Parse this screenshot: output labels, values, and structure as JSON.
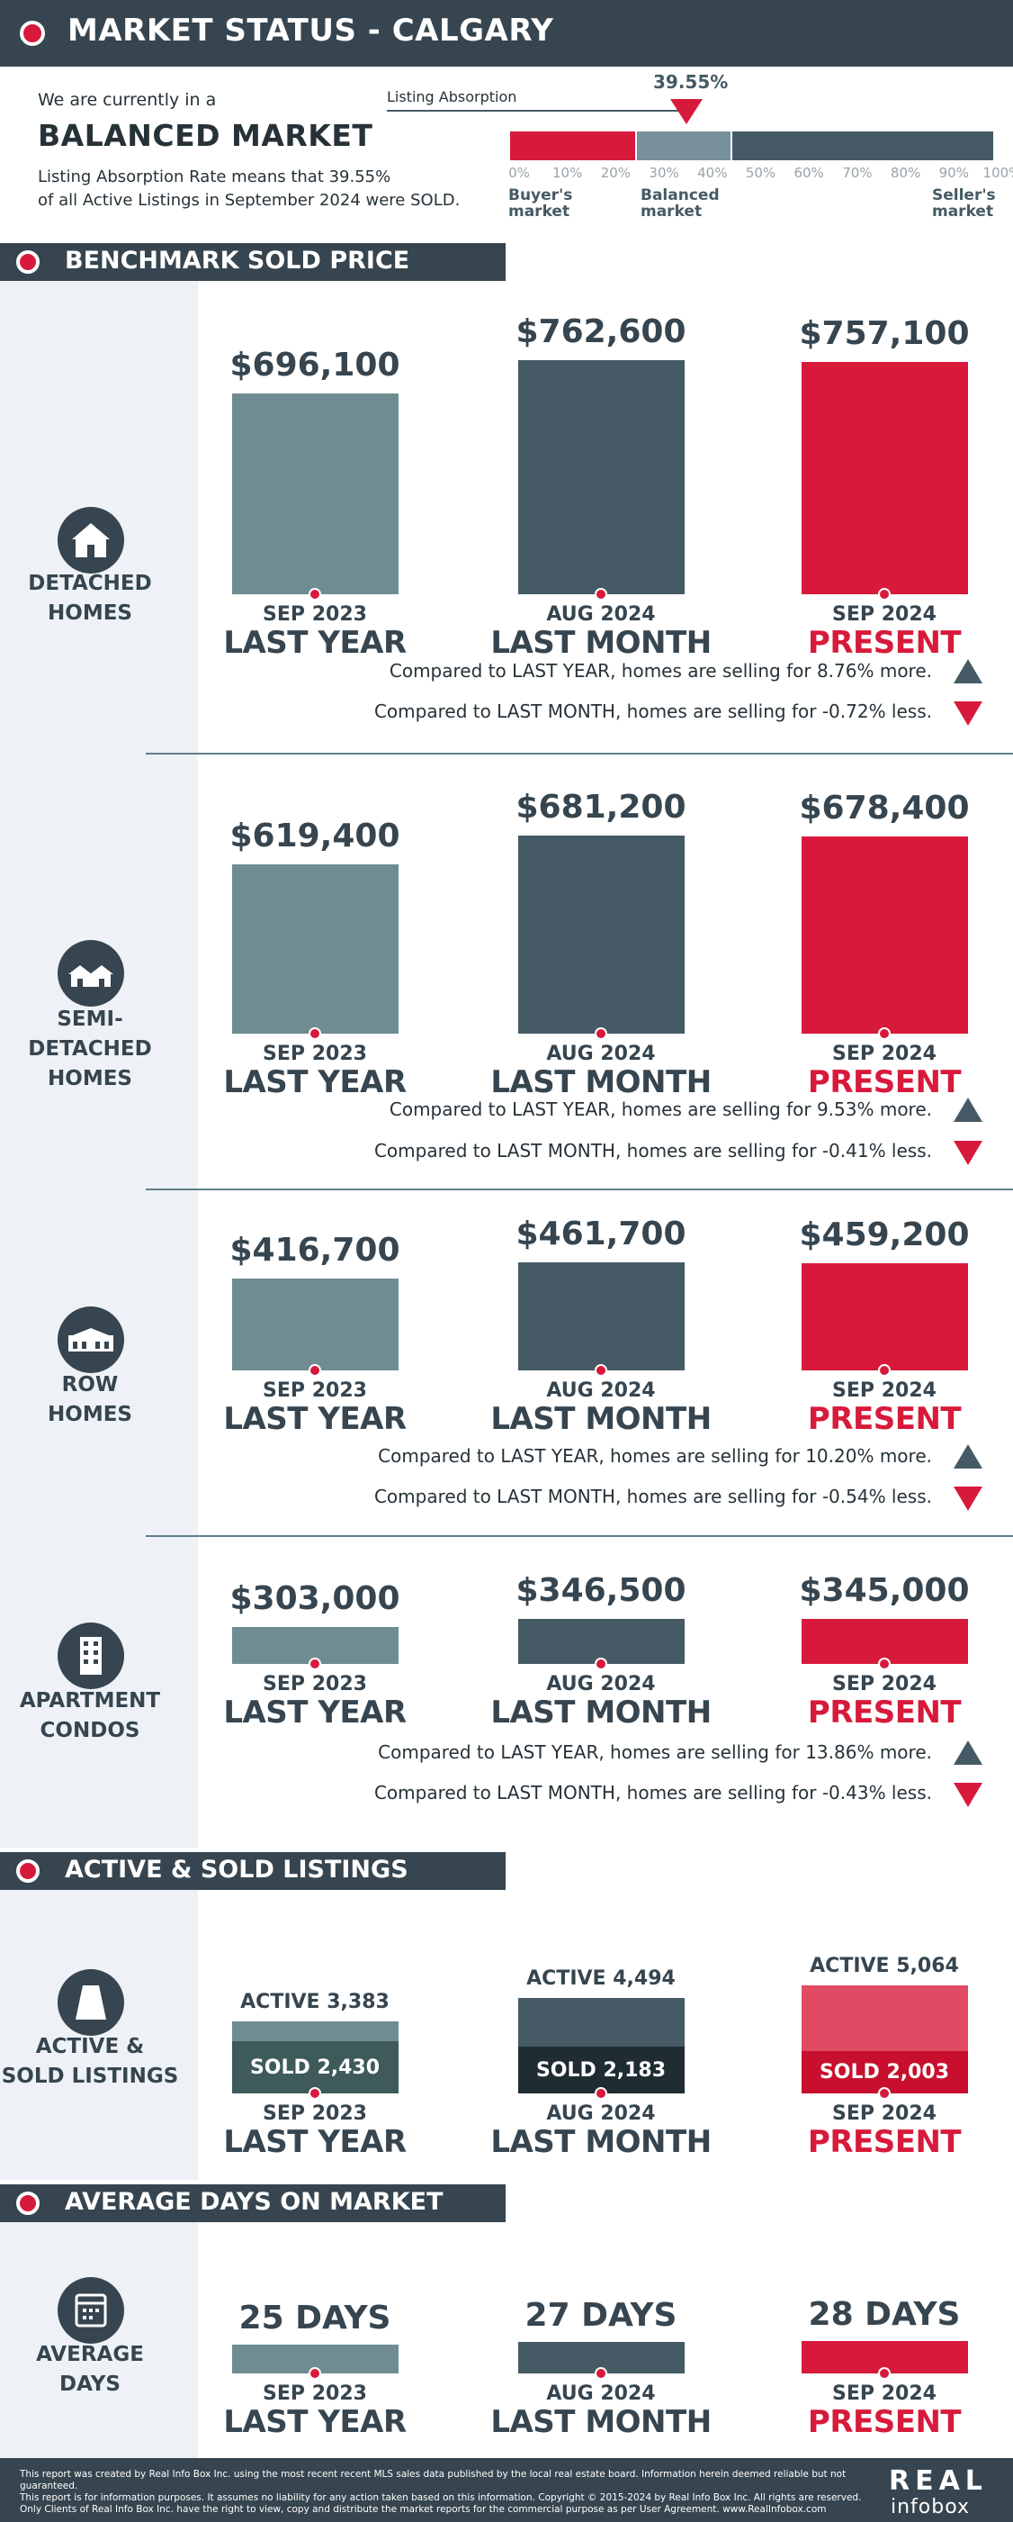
{
  "header": {
    "title": "MARKET STATUS - CALGARY"
  },
  "intro": {
    "line1": "We are currently in a",
    "market": "BALANCED MARKET",
    "line3": "Listing Absorption Rate means that 39.55%",
    "line4": "of all Active Listings in September 2024 were SOLD."
  },
  "gauge": {
    "label": "Listing Absorption",
    "value": "39.55%",
    "value_fraction": 0.3955,
    "ticks": [
      "0%",
      "10%",
      "20%",
      "30%",
      "40%",
      "50%",
      "60%",
      "70%",
      "80%",
      "90%",
      "100%"
    ],
    "zones": [
      {
        "name_line1": "Buyer's",
        "name_line2": "market",
        "color": "#d71a3b"
      },
      {
        "name_line1": "Balanced",
        "name_line2": "market",
        "color": "#78909c"
      },
      {
        "name_line1": "Seller's",
        "name_line2": "market",
        "color": "#455a64"
      }
    ]
  },
  "sections": {
    "benchmark": "BENCHMARK SOLD PRICE",
    "listings": "ACTIVE & SOLD LISTINGS",
    "days": "AVERAGE DAYS ON MARKET"
  },
  "periods": [
    {
      "date": "SEP 2023",
      "label": "LAST YEAR",
      "color": "#6e8c92"
    },
    {
      "date": "AUG 2024",
      "label": "LAST MONTH",
      "color": "#455a64"
    },
    {
      "date": "SEP 2024",
      "label": "PRESENT",
      "color": "#d71a3b"
    }
  ],
  "categories": [
    {
      "line1": "DETACHED",
      "line2": "HOMES",
      "icon": "house-icon",
      "prices": [
        "$696,100",
        "$762,600",
        "$757,100"
      ],
      "values": [
        696100,
        762600,
        757100
      ],
      "cmp_year": "Compared to LAST YEAR, homes are selling for 8.76% more.",
      "cmp_month": "Compared to LAST MONTH, homes are selling for -0.72% less."
    },
    {
      "line1": "SEMI-DETACHED",
      "line2": "HOMES",
      "icon": "semi-detached-icon",
      "prices": [
        "$619,400",
        "$681,200",
        "$678,400"
      ],
      "values": [
        619400,
        681200,
        678400
      ],
      "cmp_year": "Compared to LAST YEAR, homes are selling for 9.53% more.",
      "cmp_month": "Compared to LAST MONTH, homes are selling for -0.41% less."
    },
    {
      "line1": "ROW",
      "line2": "HOMES",
      "icon": "row-homes-icon",
      "prices": [
        "$416,700",
        "$461,700",
        "$459,200"
      ],
      "values": [
        416700,
        461700,
        459200
      ],
      "cmp_year": "Compared to LAST YEAR, homes are selling for 10.20% more.",
      "cmp_month": "Compared to LAST MONTH, homes are selling for -0.54% less."
    },
    {
      "line1": "APARTMENT",
      "line2": "CONDOS",
      "icon": "apartment-icon",
      "prices": [
        "$303,000",
        "$346,500",
        "$345,000"
      ],
      "values": [
        303000,
        346500,
        345000
      ],
      "cmp_year": "Compared to LAST YEAR, homes are selling for 13.86% more.",
      "cmp_month": "Compared to LAST MONTH, homes are selling for -0.43% less."
    }
  ],
  "listings": {
    "line1": "ACTIVE &",
    "line2": "SOLD LISTINGS",
    "icon": "listings-icon",
    "items": [
      {
        "active": "ACTIVE 3,383",
        "sold": "SOLD 2,430",
        "active_n": 3383,
        "sold_n": 2430,
        "active_color": "#6e8c92",
        "sold_color": "#3e5a5a"
      },
      {
        "active": "ACTIVE 4,494",
        "sold": "SOLD 2,183",
        "active_n": 4494,
        "sold_n": 2183,
        "active_color": "#455a64",
        "sold_color": "#1f2d33"
      },
      {
        "active": "ACTIVE 5,064",
        "sold": "SOLD 2,003",
        "active_n": 5064,
        "sold_n": 2003,
        "active_color": "#e04a63",
        "sold_color": "#c8102e"
      }
    ]
  },
  "days": {
    "line1": "AVERAGE",
    "line2": "DAYS",
    "icon": "calendar-icon",
    "items": [
      "25 DAYS",
      "27 DAYS",
      "28 DAYS"
    ],
    "values": [
      25,
      27,
      28
    ]
  },
  "footer": {
    "line1": "This report was created by Real Info Box Inc. using the most recent  recent MLS sales data published by the local real estate board. Information herein deemed reliable but not guaranteed.",
    "line2": "This report is for information purposes. It assumes no liability for any action taken based on this information. Copyright © 2015-2024 by Real Info Box Inc. All rights are reserved.",
    "line3": "Only Clients of Real Info Box Inc. have the right to view, copy and distribute the market reports for the commercial purpose as per User Agreement. www.RealInfobox.com",
    "logo_top": "REAL",
    "logo_bottom": "infobox"
  }
}
